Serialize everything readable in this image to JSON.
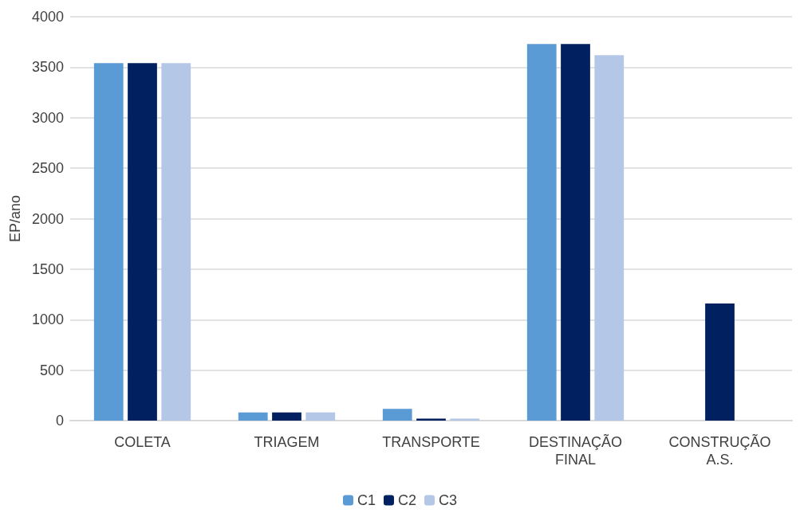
{
  "chart_data": {
    "type": "bar",
    "ylabel": "EP/ano",
    "categories": [
      "COLETA",
      "TRIAGEM",
      "TRANSPORTE",
      "DESTINAÇÃO\nFINAL",
      "CONSTRUÇÃO\nA.S."
    ],
    "series": [
      {
        "name": "C1",
        "color": "#5b9bd5",
        "values": [
          3540,
          80,
          117,
          3730,
          null
        ]
      },
      {
        "name": "C2",
        "color": "#002060",
        "values": [
          3540,
          80,
          20,
          3730,
          1160
        ]
      },
      {
        "name": "C3",
        "color": "#b4c7e7",
        "values": [
          3540,
          80,
          20,
          3620,
          null
        ]
      }
    ],
    "ylim": [
      0,
      4000
    ],
    "yticks": [
      0,
      500,
      1000,
      1500,
      2000,
      2500,
      3000,
      3500,
      4000
    ],
    "grid": "y",
    "legend": "bottom"
  }
}
